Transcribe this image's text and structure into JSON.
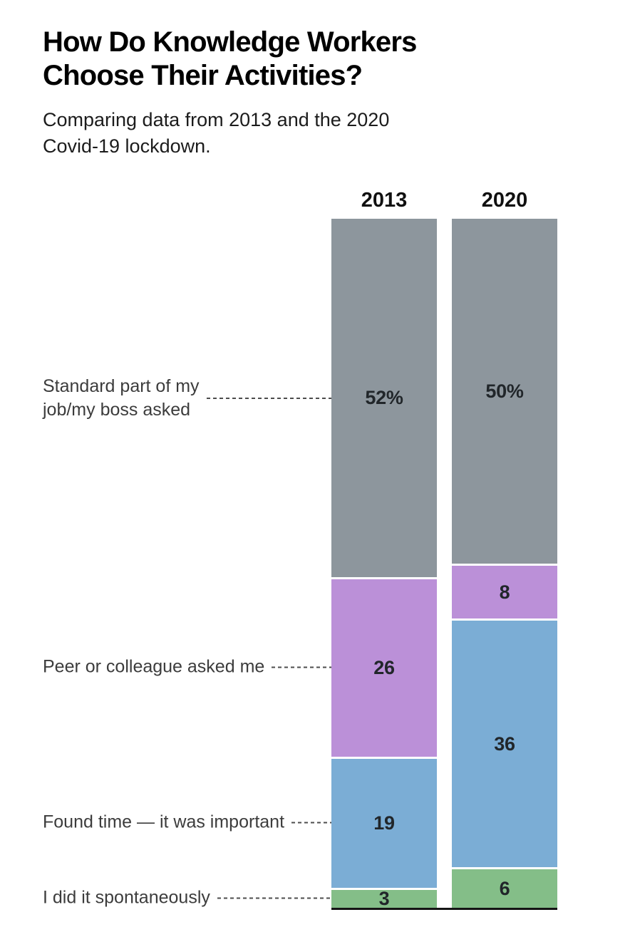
{
  "header": {
    "title": "How Do Knowledge Workers\nChoose Their Activities?",
    "subtitle": "Comparing data from 2013 and the 2020\nCovid-19 lockdown."
  },
  "chart_data": {
    "type": "bar",
    "variant": "stacked-100pct-column-comparison",
    "title": "How Do Knowledge Workers Choose Their Activities?",
    "subtitle": "Comparing data from 2013 and the 2020 Covid-19 lockdown.",
    "columns": [
      "2013",
      "2020"
    ],
    "unit": "percent",
    "ylim": [
      0,
      100
    ],
    "grid": false,
    "legend_position": "left-category-labels-with-dashed-leaders",
    "categories": [
      "Standard part of my job/my boss asked",
      "Peer or colleague asked me",
      "Found time — it was important",
      "I did it spontaneously"
    ],
    "category_label_breaks": [
      "Standard part of my\njob/my boss asked",
      "Peer or colleague asked me",
      "Found time — it was important",
      "I did it spontaneously"
    ],
    "series": [
      {
        "name": "Standard part of my job/my boss asked",
        "color": "#8d969d",
        "values": [
          52,
          50
        ],
        "value_labels": [
          "52%",
          "50%"
        ]
      },
      {
        "name": "Peer or colleague asked me",
        "color": "#bb90d8",
        "values": [
          26,
          8
        ],
        "value_labels": [
          "26",
          "8"
        ]
      },
      {
        "name": "Found time — it was important",
        "color": "#7badd5",
        "values": [
          19,
          36
        ],
        "value_labels": [
          "19",
          "36"
        ]
      },
      {
        "name": "I did it spontaneously",
        "color": "#84be88",
        "values": [
          3,
          6
        ],
        "value_labels": [
          "3",
          "6"
        ]
      }
    ],
    "colors": {
      "baseline": "#151515",
      "leader_line": "#4c4c4c",
      "value_text": "#21262a",
      "segment_gap": "#ffffff"
    }
  }
}
